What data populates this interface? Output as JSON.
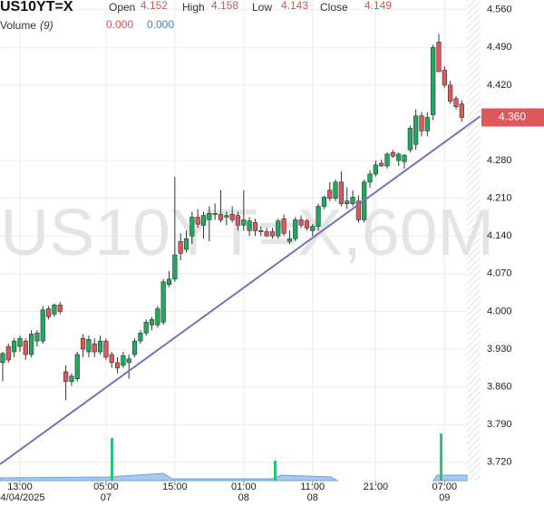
{
  "header": {
    "symbol": "US10YT=X",
    "fields": [
      {
        "label": "Open",
        "value": 4.152
      },
      {
        "label": "High",
        "value": 4.158
      },
      {
        "label": "Low",
        "value": 4.143
      },
      {
        "label": "Close",
        "value": 4.149
      }
    ],
    "volume_label": "Volume",
    "volume_period": "(9)",
    "volume_values": [
      "0.000",
      "0.000"
    ]
  },
  "chart_data": {
    "type": "candlestick",
    "watermark": "US10YT=X,60M",
    "up_color": "#1faa5e",
    "down_color": "#e0575b",
    "ylim": [
      3.686,
      4.578
    ],
    "yticks": [
      {
        "value": 4.56,
        "label": "4.560"
      },
      {
        "value": 4.49,
        "label": "4.490"
      },
      {
        "value": 4.42,
        "label": "4.420"
      },
      {
        "value": 4.28,
        "label": "4.280"
      },
      {
        "value": 4.21,
        "label": "4.210"
      },
      {
        "value": 4.14,
        "label": "4.140"
      },
      {
        "value": 4.07,
        "label": "4.070"
      },
      {
        "value": 4.0,
        "label": "4.000"
      },
      {
        "value": 3.93,
        "label": "3.930"
      },
      {
        "value": 3.86,
        "label": "3.860"
      },
      {
        "value": 3.79,
        "label": "3.790"
      },
      {
        "value": 3.72,
        "label": "3.720"
      }
    ],
    "xlim": [
      -0.47,
      80.9
    ],
    "xticks": [
      {
        "value": 3,
        "label": "13:00",
        "date": "04/04/2025"
      },
      {
        "value": 18,
        "label": "05:00",
        "date": "07"
      },
      {
        "value": 30,
        "label": "15:00"
      },
      {
        "value": 42,
        "label": "01:00",
        "date": "08"
      },
      {
        "value": 54,
        "label": "11:00",
        "date": "08"
      },
      {
        "value": 65,
        "label": "21:00"
      },
      {
        "value": 77,
        "label": "07:00",
        "date": "09"
      }
    ],
    "last_label": "4.360",
    "candles": [
      [
        3.905,
        3.925,
        3.87,
        3.922
      ],
      [
        3.935,
        3.94,
        3.905,
        3.91
      ],
      [
        3.925,
        3.95,
        3.915,
        3.945
      ],
      [
        3.935,
        3.955,
        3.925,
        3.95
      ],
      [
        3.945,
        3.95,
        3.91,
        3.92
      ],
      [
        3.92,
        3.965,
        3.915,
        3.958
      ],
      [
        3.945,
        3.965,
        3.935,
        3.96
      ],
      [
        3.945,
        4.01,
        3.94,
        4.003
      ],
      [
        4.005,
        4.01,
        3.985,
        3.99
      ],
      [
        3.995,
        4.015,
        3.99,
        4.012
      ],
      [
        4.012,
        4.018,
        3.995,
        4.0
      ],
      [
        3.888,
        3.9,
        3.835,
        3.87
      ],
      [
        3.87,
        3.885,
        3.862,
        3.88
      ],
      [
        3.875,
        3.925,
        3.87,
        3.92
      ],
      [
        3.95,
        3.958,
        3.915,
        3.93
      ],
      [
        3.925,
        3.955,
        3.915,
        3.948
      ],
      [
        3.94,
        3.95,
        3.915,
        3.925
      ],
      [
        3.925,
        3.955,
        3.92,
        3.945
      ],
      [
        3.945,
        3.95,
        3.91,
        3.915
      ],
      [
        3.92,
        3.925,
        3.895,
        3.905
      ],
      [
        3.905,
        3.915,
        3.885,
        3.895
      ],
      [
        3.9,
        3.925,
        3.895,
        3.918
      ],
      [
        3.905,
        3.92,
        3.875,
        3.912
      ],
      [
        3.92,
        3.95,
        3.915,
        3.945
      ],
      [
        3.945,
        3.965,
        3.94,
        3.96
      ],
      [
        3.96,
        3.985,
        3.955,
        3.98
      ],
      [
        3.975,
        3.99,
        3.965,
        3.985
      ],
      [
        3.975,
        4.01,
        3.97,
        4.005
      ],
      [
        3.98,
        4.06,
        3.975,
        4.055
      ],
      [
        4.05,
        4.075,
        4.045,
        4.06
      ],
      [
        4.06,
        4.25,
        4.055,
        4.105
      ],
      [
        4.13,
        4.145,
        4.095,
        4.108
      ],
      [
        4.115,
        4.15,
        4.11,
        4.135
      ],
      [
        4.14,
        4.185,
        4.125,
        4.175
      ],
      [
        4.175,
        4.19,
        4.155,
        4.162
      ],
      [
        4.16,
        4.185,
        4.135,
        4.178
      ],
      [
        4.17,
        4.195,
        4.13,
        4.182
      ],
      [
        4.18,
        4.2,
        4.17,
        4.182
      ],
      [
        4.18,
        4.225,
        4.165,
        4.17
      ],
      [
        4.175,
        4.185,
        4.16,
        4.178
      ],
      [
        4.18,
        4.195,
        4.165,
        4.17
      ],
      [
        4.178,
        4.185,
        4.15,
        4.16
      ],
      [
        4.16,
        4.225,
        4.15,
        4.17
      ],
      [
        4.15,
        4.175,
        4.14,
        4.168
      ],
      [
        4.165,
        4.172,
        4.14,
        4.15
      ],
      [
        4.15,
        4.158,
        4.14,
        4.148
      ],
      [
        4.148,
        4.155,
        4.138,
        4.14
      ],
      [
        4.148,
        4.155,
        4.135,
        4.14
      ],
      [
        4.14,
        4.172,
        4.135,
        4.168
      ],
      [
        4.172,
        4.18,
        4.14,
        4.145
      ],
      [
        4.13,
        4.15,
        4.125,
        4.135
      ],
      [
        4.135,
        4.175,
        4.13,
        4.17
      ],
      [
        4.17,
        4.178,
        4.155,
        4.16
      ],
      [
        4.168,
        4.172,
        4.15,
        4.155
      ],
      [
        4.15,
        4.162,
        4.14,
        4.158
      ],
      [
        4.158,
        4.2,
        4.15,
        4.195
      ],
      [
        4.195,
        4.215,
        4.19,
        4.212
      ],
      [
        4.225,
        4.24,
        4.205,
        4.21
      ],
      [
        4.21,
        4.245,
        4.205,
        4.24
      ],
      [
        4.24,
        4.26,
        4.195,
        4.2
      ],
      [
        4.2,
        4.23,
        4.19,
        4.205
      ],
      [
        4.2,
        4.225,
        4.195,
        4.212
      ],
      [
        4.205,
        4.215,
        4.165,
        4.17
      ],
      [
        4.17,
        4.245,
        4.165,
        4.24
      ],
      [
        4.24,
        4.262,
        4.23,
        4.255
      ],
      [
        4.255,
        4.28,
        4.25,
        4.272
      ],
      [
        4.275,
        4.282,
        4.268,
        4.27
      ],
      [
        4.27,
        4.295,
        4.265,
        4.292
      ],
      [
        4.295,
        4.3,
        4.285,
        4.288
      ],
      [
        4.28,
        4.295,
        4.27,
        4.292
      ],
      [
        4.278,
        4.292,
        4.265,
        4.29
      ],
      [
        4.3,
        4.345,
        4.295,
        4.34
      ],
      [
        4.31,
        4.375,
        4.3,
        4.363
      ],
      [
        4.363,
        4.37,
        4.325,
        4.335
      ],
      [
        4.335,
        4.37,
        4.325,
        4.36
      ],
      [
        4.365,
        4.495,
        4.355,
        4.49
      ],
      [
        4.5,
        4.515,
        4.445,
        4.445
      ],
      [
        4.448,
        4.455,
        4.415,
        4.42
      ],
      [
        4.42,
        4.428,
        4.385,
        4.39
      ],
      [
        4.395,
        4.4,
        4.375,
        4.38
      ],
      [
        4.385,
        4.392,
        4.352,
        4.36
      ]
    ]
  }
}
